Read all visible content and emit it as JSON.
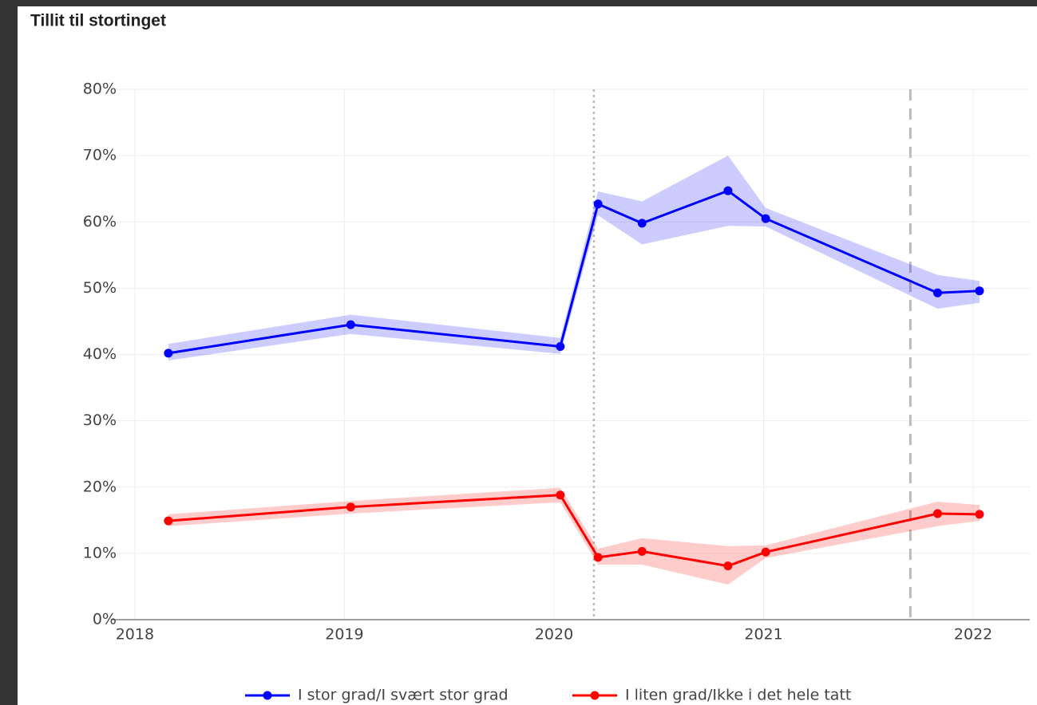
{
  "chart_data": {
    "type": "line",
    "title": "Tillit til stortinget",
    "x": [
      2018.16,
      2019.03,
      2020.03,
      2020.21,
      2020.42,
      2020.83,
      2021.01,
      2021.83,
      2022.03
    ],
    "series": [
      {
        "name": "I stor grad/I svært stor grad",
        "color": "#0000ff",
        "band_color": "rgba(0,0,255,0.2)",
        "values": [
          40.2,
          44.5,
          41.2,
          62.7,
          59.8,
          64.7,
          60.5,
          49.3,
          49.6
        ],
        "lower": [
          39.1,
          43.1,
          40.1,
          61.0,
          56.6,
          59.4,
          59.3,
          46.9,
          47.8
        ],
        "upper": [
          41.6,
          46.0,
          42.5,
          64.6,
          63.1,
          70.0,
          62.1,
          52.0,
          51.1
        ]
      },
      {
        "name": "I liten grad/Ikke i det hele tatt",
        "color": "#ff0000",
        "band_color": "rgba(255,0,0,0.2)",
        "values": [
          14.9,
          17.0,
          18.8,
          9.4,
          10.3,
          8.1,
          10.2,
          16.0,
          15.9
        ],
        "lower": [
          14.1,
          16.0,
          17.7,
          8.3,
          8.3,
          5.3,
          9.3,
          14.1,
          14.9
        ],
        "upper": [
          15.9,
          17.9,
          19.9,
          10.7,
          12.3,
          11.1,
          11.2,
          17.8,
          17.3
        ]
      }
    ],
    "vlines": [
      {
        "x": 2020.19,
        "dash": "dot"
      },
      {
        "x": 2021.7,
        "dash": "dash"
      }
    ],
    "xlim": [
      2017.89,
      2022.27
    ],
    "xticks": [
      2018,
      2019,
      2020,
      2021,
      2022
    ],
    "ylim": [
      0,
      80
    ],
    "yticks": [
      {
        "value": 0,
        "label": "0%"
      },
      {
        "value": 10,
        "label": "10%"
      },
      {
        "value": 20,
        "label": "20%"
      },
      {
        "value": 30,
        "label": "30%"
      },
      {
        "value": 40,
        "label": "40%"
      },
      {
        "value": 50,
        "label": "50%"
      },
      {
        "value": 60,
        "label": "60%"
      },
      {
        "value": 70,
        "label": "70%"
      },
      {
        "value": 80,
        "label": "80%"
      }
    ],
    "grid": true,
    "legend": "bottom"
  }
}
